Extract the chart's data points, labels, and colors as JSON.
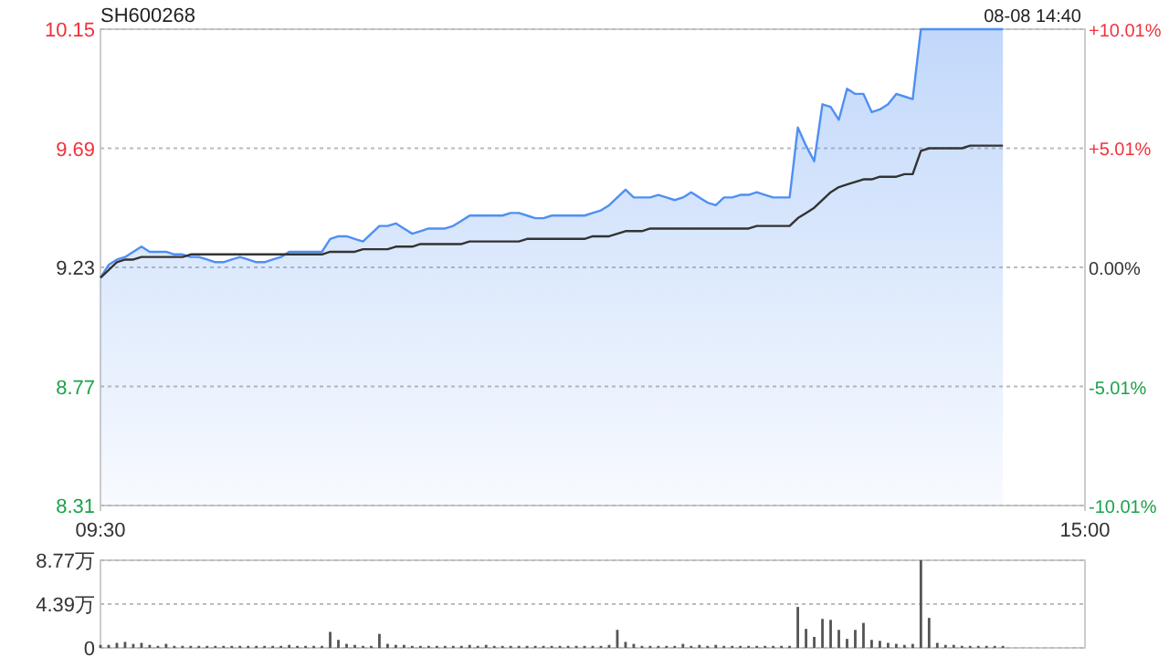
{
  "chart_data": [
    {
      "type": "area",
      "title": "SH600268",
      "annotations": [
        "08-08 14:40"
      ],
      "grid": "y",
      "categories": [
        "09:30",
        null,
        null,
        null,
        null,
        null,
        null,
        null,
        null,
        null,
        null,
        null,
        null,
        null,
        null,
        null,
        null,
        null,
        null,
        null,
        null,
        null,
        null,
        null,
        null,
        null,
        null,
        null,
        null,
        null,
        null,
        null,
        null,
        null,
        null,
        null,
        null,
        null,
        null,
        null,
        null,
        null,
        null,
        null,
        null,
        null,
        null,
        null,
        null,
        null,
        null,
        null,
        null,
        null,
        null,
        null,
        null,
        null,
        null,
        null,
        null,
        null,
        null,
        null,
        null,
        null,
        null,
        null,
        null,
        null,
        null,
        null,
        null,
        null,
        null,
        null,
        null,
        null,
        null,
        null,
        null,
        null,
        null,
        null,
        null,
        null,
        null,
        null,
        null,
        null,
        null,
        null,
        null,
        null,
        null,
        null,
        null,
        null,
        null,
        null,
        null,
        null,
        null,
        null,
        null,
        null,
        null,
        null,
        null,
        null,
        null,
        null,
        null,
        null,
        null,
        null,
        null,
        null,
        null,
        null,
        "15:00"
      ],
      "ylim": [
        8.31,
        10.15
      ],
      "yticks": [
        8.31,
        8.77,
        9.23,
        9.69,
        10.15
      ],
      "y2lim": [
        -10.01,
        10.01
      ],
      "y2ticks": [
        {
          "value": -10.01,
          "label": "-10.01%"
        },
        {
          "value": -5.01,
          "label": "-5.01%"
        },
        {
          "value": 0,
          "label": "0.00%"
        },
        {
          "value": 5.01,
          "label": "+5.01%"
        },
        {
          "value": 10.01,
          "label": "+10.01%"
        }
      ],
      "series": [
        {
          "color": "#4f8ff2",
          "values": [
            9.19,
            9.24,
            9.26,
            9.27,
            9.29,
            9.31,
            9.29,
            9.29,
            9.29,
            9.28,
            9.28,
            9.27,
            9.27,
            9.26,
            9.25,
            9.25,
            9.26,
            9.27,
            9.26,
            9.25,
            9.25,
            9.26,
            9.27,
            9.29,
            9.29,
            9.29,
            9.29,
            9.29,
            9.34,
            9.35,
            9.35,
            9.34,
            9.33,
            9.36,
            9.39,
            9.39,
            9.4,
            9.38,
            9.36,
            9.37,
            9.38,
            9.38,
            9.38,
            9.39,
            9.41,
            9.43,
            9.43,
            9.43,
            9.43,
            9.43,
            9.44,
            9.44,
            9.43,
            9.42,
            9.42,
            9.43,
            9.43,
            9.43,
            9.43,
            9.43,
            9.44,
            9.45,
            9.47,
            9.5,
            9.53,
            9.5,
            9.5,
            9.5,
            9.51,
            9.5,
            9.49,
            9.5,
            9.52,
            9.5,
            9.48,
            9.47,
            9.5,
            9.5,
            9.51,
            9.51,
            9.52,
            9.51,
            9.5,
            9.5,
            9.5,
            9.77,
            9.7,
            9.64,
            9.86,
            9.85,
            9.8,
            9.92,
            9.9,
            9.9,
            9.83,
            9.84,
            9.86,
            9.9,
            9.89,
            9.88,
            10.15,
            10.15,
            10.15,
            10.15,
            10.15,
            10.15,
            10.15,
            10.15,
            10.15,
            10.15,
            10.15,
            null,
            null,
            null,
            null,
            null,
            null,
            null,
            null,
            null,
            null
          ]
        },
        {
          "type": "line",
          "color": "#333333",
          "values": [
            9.19,
            9.22,
            9.25,
            9.26,
            9.26,
            9.27,
            9.27,
            9.27,
            9.27,
            9.27,
            9.27,
            9.28,
            9.28,
            9.28,
            9.28,
            9.28,
            9.28,
            9.28,
            9.28,
            9.28,
            9.28,
            9.28,
            9.28,
            9.28,
            9.28,
            9.28,
            9.28,
            9.28,
            9.29,
            9.29,
            9.29,
            9.29,
            9.3,
            9.3,
            9.3,
            9.3,
            9.31,
            9.31,
            9.31,
            9.32,
            9.32,
            9.32,
            9.32,
            9.32,
            9.32,
            9.33,
            9.33,
            9.33,
            9.33,
            9.33,
            9.33,
            9.33,
            9.34,
            9.34,
            9.34,
            9.34,
            9.34,
            9.34,
            9.34,
            9.34,
            9.35,
            9.35,
            9.35,
            9.36,
            9.37,
            9.37,
            9.37,
            9.38,
            9.38,
            9.38,
            9.38,
            9.38,
            9.38,
            9.38,
            9.38,
            9.38,
            9.38,
            9.38,
            9.38,
            9.38,
            9.39,
            9.39,
            9.39,
            9.39,
            9.39,
            9.42,
            9.44,
            9.46,
            9.49,
            9.52,
            9.54,
            9.55,
            9.56,
            9.57,
            9.57,
            9.58,
            9.58,
            9.58,
            9.59,
            9.59,
            9.68,
            9.69,
            9.69,
            9.69,
            9.69,
            9.69,
            9.7,
            9.7,
            9.7,
            9.7,
            9.7,
            null,
            null,
            null,
            null,
            null,
            null,
            null,
            null,
            null,
            null
          ]
        }
      ]
    },
    {
      "type": "bar",
      "grid": "y",
      "categories": [
        null,
        null,
        null,
        null,
        null,
        null,
        null,
        null,
        null,
        null,
        null,
        null,
        null,
        null,
        null,
        null,
        null,
        null,
        null,
        null,
        null,
        null,
        null,
        null,
        null,
        null,
        null,
        null,
        null,
        null,
        null,
        null,
        null,
        null,
        null,
        null,
        null,
        null,
        null,
        null,
        null,
        null,
        null,
        null,
        null,
        null,
        null,
        null,
        null,
        null,
        null,
        null,
        null,
        null,
        null,
        null,
        null,
        null,
        null,
        null,
        null,
        null,
        null,
        null,
        null,
        null,
        null,
        null,
        null,
        null,
        null,
        null,
        null,
        null,
        null,
        null,
        null,
        null,
        null,
        null,
        null,
        null,
        null,
        null,
        null,
        null,
        null,
        null,
        null,
        null,
        null,
        null,
        null,
        null,
        null,
        null,
        null,
        null,
        null,
        null,
        null,
        null,
        null,
        null,
        null,
        null,
        null,
        null,
        null,
        null,
        null,
        null,
        null,
        null,
        null,
        null,
        null,
        null,
        null,
        null,
        null
      ],
      "ylim": [
        0,
        8.77
      ],
      "yticks": [
        {
          "value": 0,
          "label": "0"
        },
        {
          "value": 4.39,
          "label": "4.39万"
        },
        {
          "value": 8.77,
          "label": "8.77万"
        }
      ],
      "series": [
        {
          "color": "#555555",
          "values": [
            0.3,
            0.3,
            0.5,
            0.6,
            0.4,
            0.5,
            0.3,
            0.2,
            0.4,
            0.2,
            0.2,
            0.2,
            0.2,
            0.2,
            0.2,
            0.2,
            0.2,
            0.2,
            0.2,
            0.2,
            0.2,
            0.2,
            0.2,
            0.3,
            0.2,
            0.2,
            0.2,
            0.2,
            1.6,
            0.8,
            0.4,
            0.3,
            0.2,
            0.2,
            1.4,
            0.4,
            0.3,
            0.3,
            0.2,
            0.2,
            0.2,
            0.2,
            0.2,
            0.2,
            0.2,
            0.3,
            0.2,
            0.3,
            0.2,
            0.2,
            0.2,
            0.2,
            0.2,
            0.2,
            0.2,
            0.2,
            0.2,
            0.2,
            0.2,
            0.2,
            0.2,
            0.2,
            0.3,
            1.8,
            0.6,
            0.4,
            0.2,
            0.2,
            0.2,
            0.2,
            0.2,
            0.4,
            0.2,
            0.3,
            0.2,
            0.3,
            0.2,
            0.2,
            0.2,
            0.2,
            0.2,
            0.2,
            0.2,
            0.2,
            0.2,
            4.1,
            1.9,
            1.1,
            2.9,
            2.8,
            1.8,
            0.9,
            1.8,
            2.5,
            0.8,
            0.7,
            0.5,
            0.4,
            0.3,
            0.4,
            8.77,
            3.0,
            0.5,
            0.3,
            0.3,
            0.2,
            0.2,
            0.2,
            0.2,
            0.2,
            0.2,
            null,
            null,
            null,
            null,
            null,
            null,
            null,
            null,
            null,
            null
          ]
        }
      ]
    }
  ]
}
